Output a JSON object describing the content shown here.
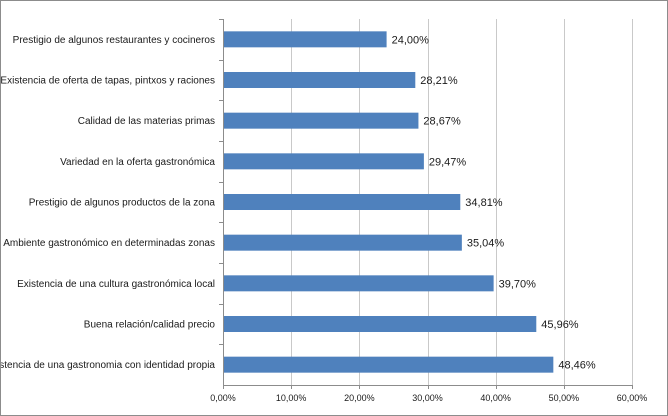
{
  "chart_data": {
    "type": "bar",
    "orientation": "horizontal",
    "title": "",
    "xlabel": "",
    "ylabel": "",
    "categories": [
      "Prestigio de algunos restaurantes y cocineros",
      "Existencia de oferta de tapas, pintxos y raciones",
      "Calidad de las materias primas",
      "Variedad en la oferta gastronómica",
      "Prestigio de algunos productos de la zona",
      "Ambiente gastronómico en determinadas zonas",
      "Existencia de una cultura gastronómica local",
      "Buena relación/calidad precio",
      "Existencia de una gastronomia con identidad propia"
    ],
    "values": [
      24.0,
      28.21,
      28.67,
      29.47,
      34.81,
      35.04,
      39.7,
      45.96,
      48.46
    ],
    "data_labels": [
      "24,00%",
      "28,21%",
      "28,67%",
      "29,47%",
      "34,81%",
      "35,04%",
      "39,70%",
      "45,96%",
      "48,46%"
    ],
    "xlim": [
      0,
      60
    ],
    "x_ticks": [
      0,
      10,
      20,
      30,
      40,
      50,
      60
    ],
    "x_tick_labels": [
      "0,00%",
      "10,00%",
      "20,00%",
      "30,00%",
      "40,00%",
      "50,00%",
      "60,00%"
    ],
    "grid": "vertical",
    "legend": "none",
    "bar_color": "#4f81bd"
  }
}
